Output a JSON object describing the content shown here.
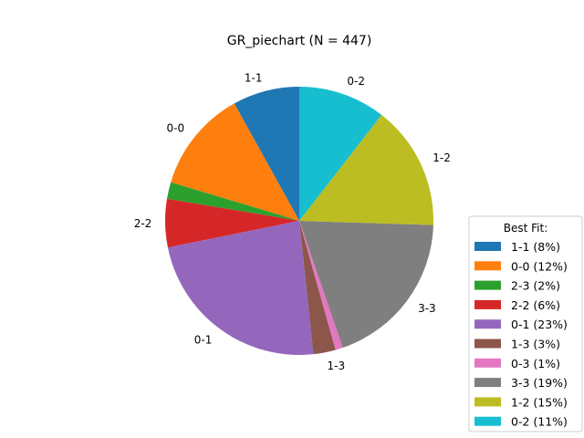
{
  "chart_data": {
    "type": "pie",
    "title": "GR_piechart (N = 447)",
    "start_angle_deg": 90,
    "direction": "counterclockwise",
    "slices": [
      {
        "label": "1-1",
        "count": 36,
        "percent_label": "1-1 (8%)",
        "color": "#1f77b4"
      },
      {
        "label": "0-0",
        "count": 55,
        "percent_label": "0-0 (12%)",
        "color": "#ff7f0e"
      },
      {
        "label": "2-3",
        "count": 9,
        "percent_label": "2-3 (2%)",
        "color": "#2ca02c"
      },
      {
        "label": "2-2",
        "count": 26,
        "percent_label": "2-2 (6%)",
        "color": "#d62728"
      },
      {
        "label": "0-1",
        "count": 105,
        "percent_label": "0-1 (23%)",
        "color": "#9467bd"
      },
      {
        "label": "1-3",
        "count": 12,
        "percent_label": "1-3 (3%)",
        "color": "#8c564b"
      },
      {
        "label": "0-3",
        "count": 4,
        "percent_label": "0-3 (1%)",
        "color": "#e377c2"
      },
      {
        "label": "3-3",
        "count": 86,
        "percent_label": "3-3 (19%)",
        "color": "#7f7f7f"
      },
      {
        "label": "1-2",
        "count": 67,
        "percent_label": "1-2 (15%)",
        "color": "#bcbd22"
      },
      {
        "label": "0-2",
        "count": 47,
        "percent_label": "0-2 (11%)",
        "color": "#17becf"
      }
    ],
    "show_slice_labels": [
      "1-1",
      "0-0",
      "2-2",
      "0-1",
      "1-3",
      "3-3",
      "1-2",
      "0-2"
    ],
    "legend": {
      "title": "Best Fit:",
      "placement": "lower-right"
    }
  }
}
